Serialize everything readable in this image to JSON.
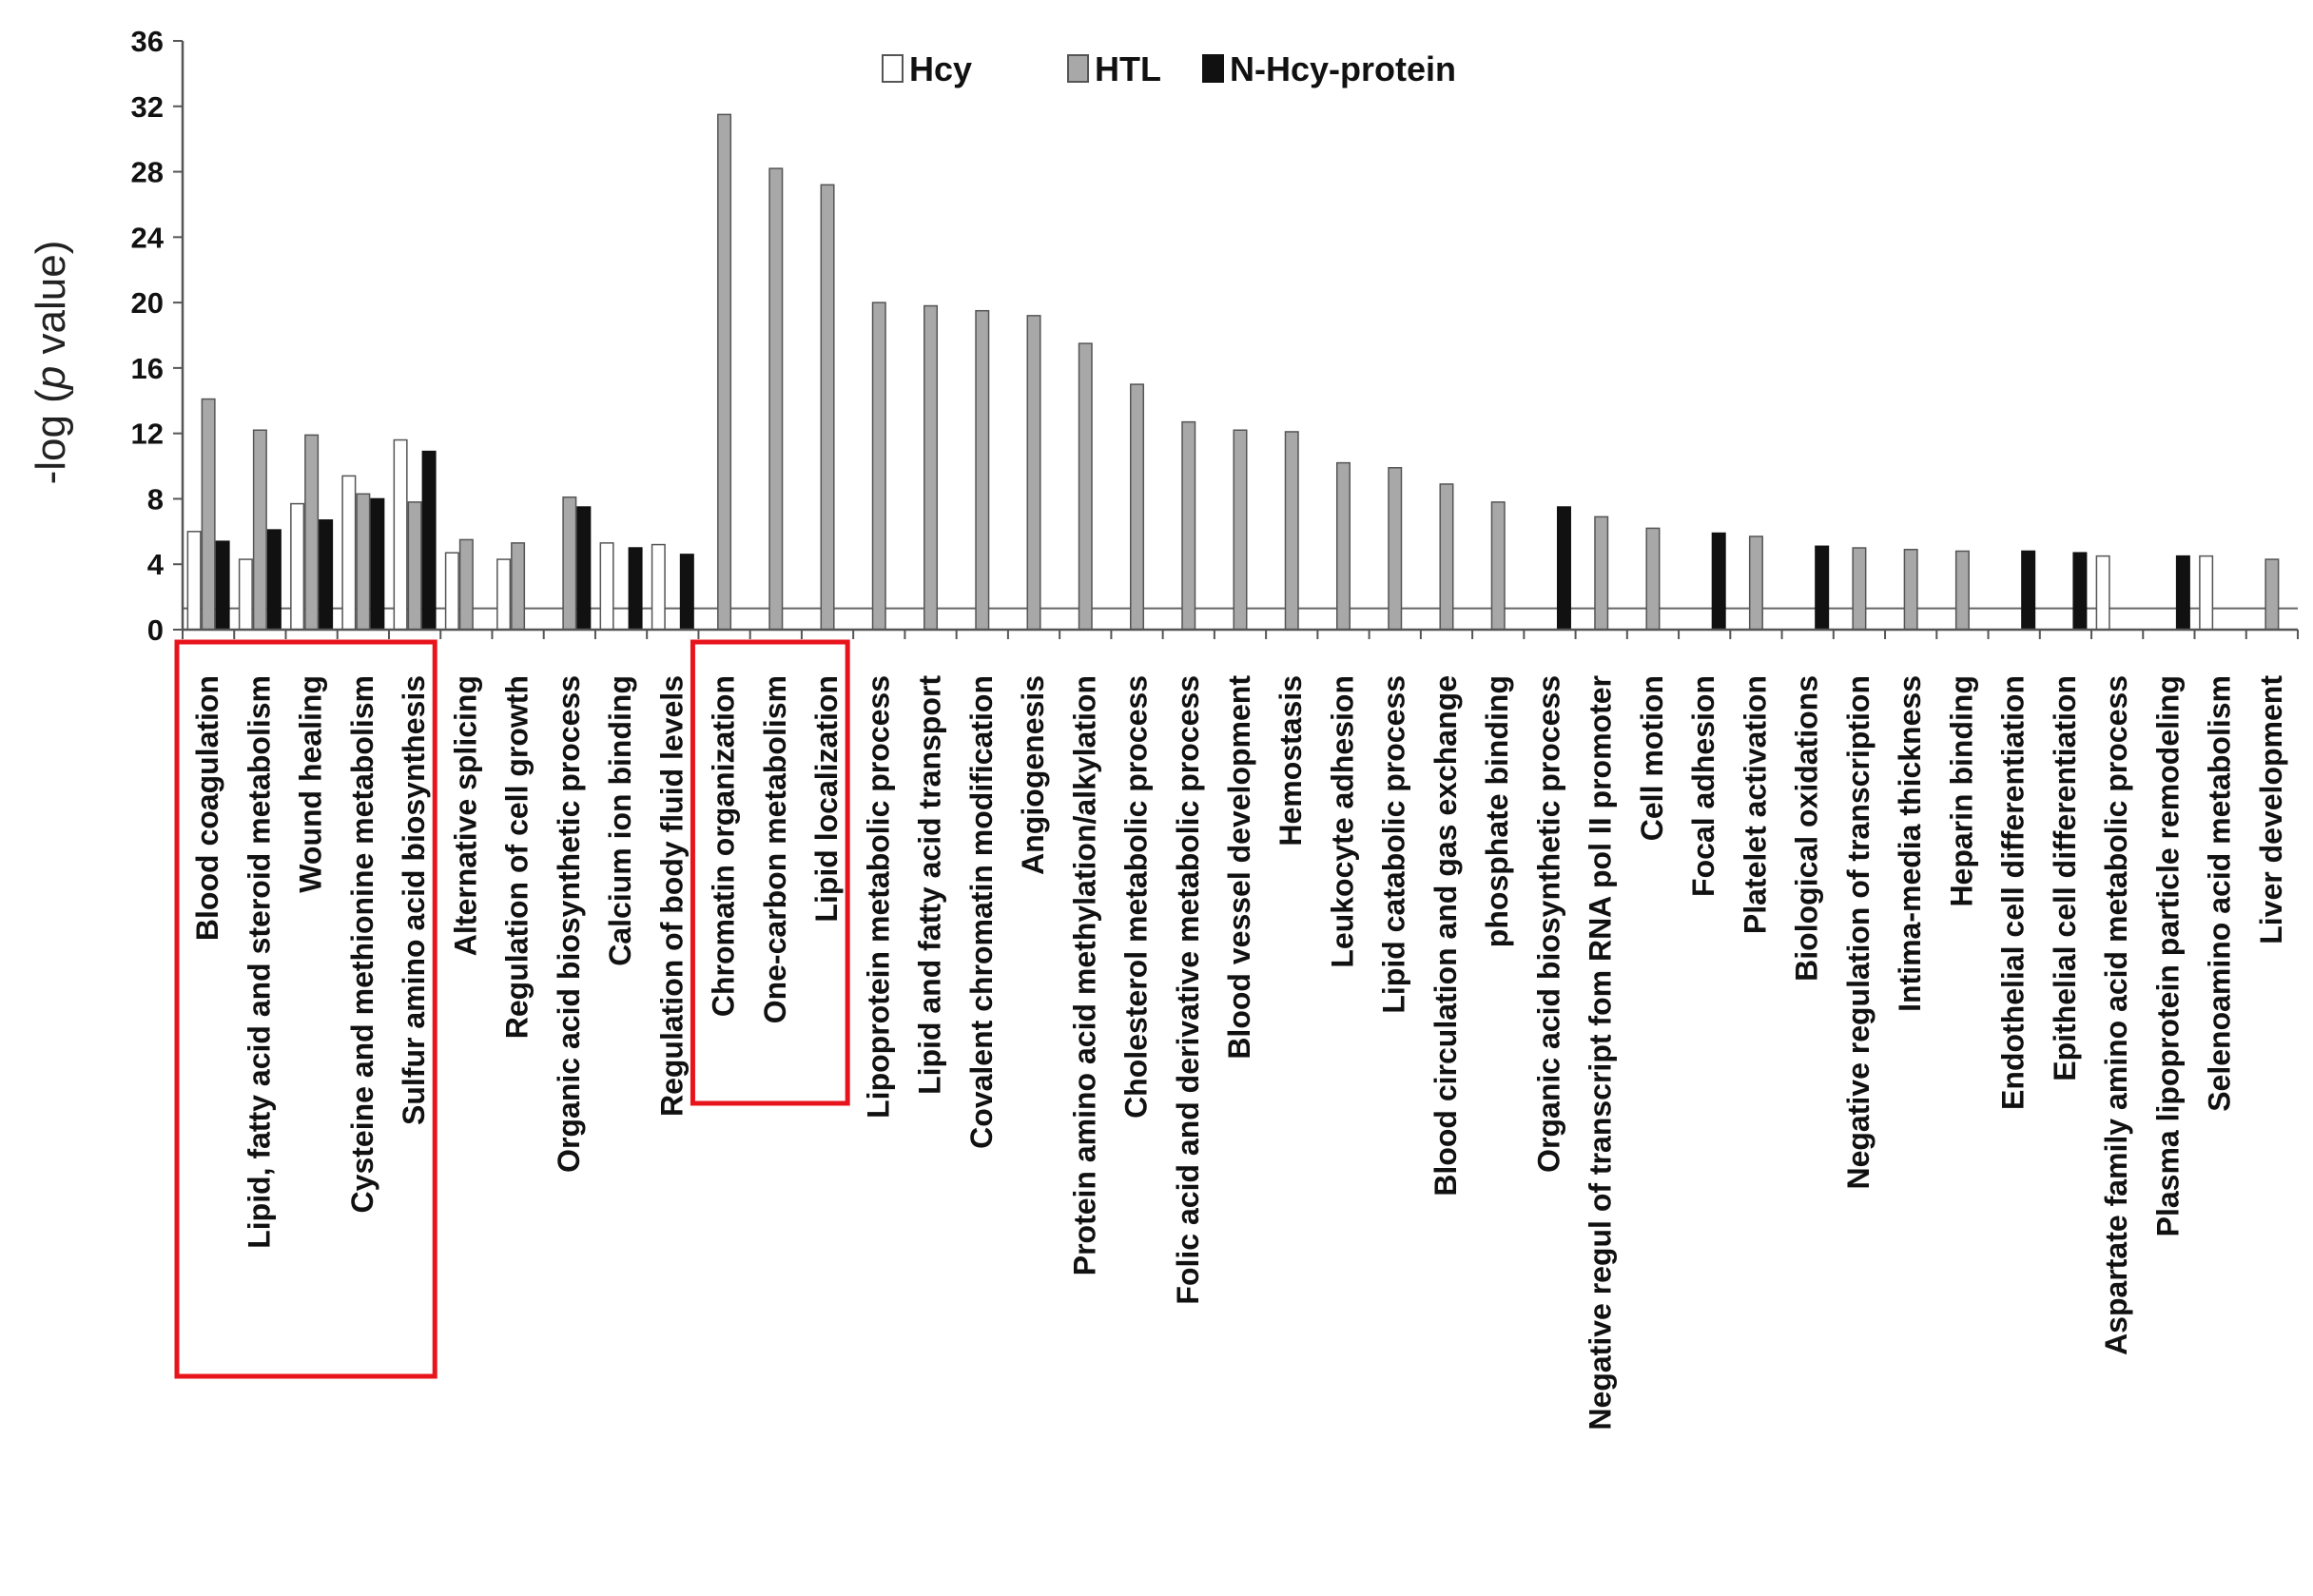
{
  "chart_data": {
    "type": "bar",
    "title": "",
    "xlabel": "",
    "ylabel": {
      "prefix": "-log (",
      "italic": "p",
      "suffix": " value)"
    },
    "ylim": [
      0,
      36
    ],
    "yticks": [
      0,
      4,
      8,
      12,
      16,
      20,
      24,
      28,
      32,
      36
    ],
    "threshold": 1.3,
    "legend_position": "top-center",
    "colors": {
      "Hcy": "#ffffff",
      "HTL": "#a8a8a8",
      "N-Hcy-protein": "#111111",
      "highlight": "#e8141b"
    },
    "categories": [
      "Blood coagulation",
      "Lipid, fatty acid and steroid metabolism",
      "Wound healing",
      "Cysteine and methionine metabolism",
      "Sulfur amino acid biosynthesis",
      "Alternative splicing",
      "Regulation of cell growth",
      "Organic acid biosynthetic process",
      "Calcium ion binding",
      "Regulation of body fluid levels",
      "Chromatin organization",
      "One-carbon metabolism",
      "Lipid localization",
      "Lipoprotein metabolic process",
      "Lipid and fatty acid transport",
      "Covalent chromatin modification",
      "Angiogenesis",
      "Protein amino acid methylation/alkylation",
      "Cholesterol metabolic process",
      "Folic acid and derivative metabolic process",
      "Blood vessel development",
      "Hemostasis",
      "Leukocyte adhesion",
      "Lipid catabolic process",
      "Blood circulation and gas exchange",
      "phosphate binding",
      "Organic acid biosynthetic process",
      "Negative regul of transcript fom RNA pol II promoter",
      "Cell motion",
      "Focal adhesion",
      "Platelet activation",
      "Biological oxidations",
      "Negative regulation of transcription",
      "Intima-media thickness",
      "Heparin binding",
      "Endothelial cell differentiation",
      "Epithelial cell differentiation",
      "Aspartate family amino acid metabolic process",
      "Plasma lipoprotein particle remodeling",
      "Selenoamino acid metabolism",
      "Liver development"
    ],
    "series": [
      {
        "name": "Hcy",
        "values": [
          6.0,
          4.3,
          7.7,
          9.4,
          11.6,
          4.7,
          4.3,
          null,
          5.3,
          5.2,
          null,
          null,
          null,
          null,
          null,
          null,
          null,
          null,
          null,
          null,
          null,
          null,
          null,
          null,
          null,
          null,
          null,
          null,
          null,
          null,
          null,
          null,
          null,
          null,
          null,
          null,
          null,
          4.5,
          null,
          4.5,
          null
        ]
      },
      {
        "name": "HTL",
        "values": [
          14.1,
          12.2,
          11.9,
          8.3,
          7.8,
          5.5,
          5.3,
          8.1,
          null,
          null,
          31.5,
          28.2,
          27.2,
          20.0,
          19.8,
          19.5,
          19.2,
          17.5,
          15.0,
          12.7,
          12.2,
          12.1,
          10.2,
          9.9,
          8.9,
          7.8,
          null,
          6.9,
          6.2,
          null,
          5.7,
          null,
          5.0,
          4.9,
          4.8,
          null,
          null,
          null,
          null,
          null,
          4.3
        ]
      },
      {
        "name": "N-Hcy-protein",
        "values": [
          5.4,
          6.1,
          6.7,
          8.0,
          10.9,
          null,
          null,
          7.5,
          5.0,
          4.6,
          null,
          null,
          null,
          null,
          null,
          null,
          null,
          null,
          null,
          null,
          null,
          null,
          null,
          null,
          null,
          null,
          7.5,
          null,
          null,
          5.9,
          null,
          5.1,
          null,
          null,
          null,
          4.8,
          4.7,
          null,
          4.5,
          null,
          null
        ]
      }
    ],
    "highlight_groups": [
      {
        "from": 0,
        "to": 4
      },
      {
        "from": 10,
        "to": 12
      }
    ]
  }
}
